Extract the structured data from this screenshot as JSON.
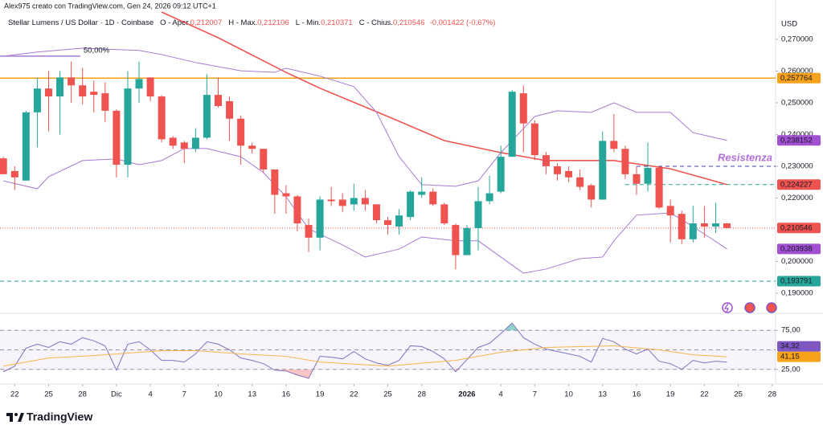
{
  "attribution": "Alex975 creato con TradingView.com, Gen 24, 2026 09:12 UTC+1",
  "branding": "TradingView",
  "chart_data": [
    {
      "type": "candlestick",
      "title": "Stellar Lumens / US Dollar · 1D · Coinbase",
      "ohlc_legend": [
        {
          "label": "O - Aper.",
          "value": "0,212007"
        },
        {
          "label": "H - Max.",
          "value": "0,212106"
        },
        {
          "label": "L - Min.",
          "value": "0,210371"
        },
        {
          "label": "C - Chius.",
          "value": "0,210546"
        }
      ],
      "change": "-0,001422 (-0,67%)",
      "legend_color": "#ef5350",
      "y_axis_label": "USD",
      "x": [
        -1,
        0,
        1,
        2,
        3,
        4,
        5,
        6,
        7,
        8,
        9,
        10,
        11,
        12,
        13,
        14,
        15,
        16,
        17,
        18,
        19,
        20,
        21,
        22,
        23,
        24,
        25,
        26,
        27,
        28,
        29,
        30,
        31,
        32,
        33,
        34,
        35,
        36,
        37,
        38,
        39,
        40,
        41,
        42,
        43,
        44,
        45,
        46,
        47,
        48,
        49,
        50,
        51,
        52,
        53,
        54,
        55,
        56,
        57,
        58,
        59,
        60,
        61,
        62,
        63
      ],
      "open": [
        0.2325,
        0.2285,
        0.2255,
        0.247,
        0.2545,
        0.252,
        0.258,
        0.2555,
        0.2535,
        0.253,
        0.2475,
        0.2305,
        0.2545,
        0.258,
        0.252,
        0.239,
        0.2375,
        0.2355,
        0.239,
        0.2525,
        0.2505,
        0.245,
        0.2365,
        0.2355,
        0.229,
        0.2215,
        0.2205,
        0.2115,
        0.2075,
        0.2195,
        0.2195,
        0.218,
        0.22,
        0.218,
        0.213,
        0.211,
        0.214,
        0.221,
        0.222,
        0.218,
        0.2115,
        0.202,
        0.2105,
        0.219,
        0.222,
        0.233,
        0.253,
        0.2435,
        0.2335,
        0.23,
        0.2285,
        0.2265,
        0.224,
        0.2195,
        0.238,
        0.2355,
        0.2275,
        0.2245,
        0.2295,
        0.2175,
        0.215,
        0.207,
        0.212,
        0.211,
        0.212007
      ],
      "high": [
        0.233,
        0.23,
        0.2475,
        0.258,
        0.26,
        0.26,
        0.263,
        0.261,
        0.257,
        0.2565,
        0.248,
        0.26,
        0.263,
        0.258,
        0.2525,
        0.2395,
        0.238,
        0.242,
        0.259,
        0.258,
        0.252,
        0.246,
        0.2375,
        0.2355,
        0.229,
        0.224,
        0.221,
        0.2135,
        0.2205,
        0.2235,
        0.2215,
        0.2245,
        0.2225,
        0.218,
        0.214,
        0.2165,
        0.2225,
        0.2265,
        0.223,
        0.2185,
        0.212,
        0.2115,
        0.2235,
        0.227,
        0.2365,
        0.254,
        0.2555,
        0.2445,
        0.2345,
        0.231,
        0.23,
        0.229,
        0.2245,
        0.241,
        0.2465,
        0.2365,
        0.23,
        0.2375,
        0.23,
        0.2195,
        0.216,
        0.2175,
        0.2175,
        0.2185,
        0.212106
      ],
      "low": [
        0.2275,
        0.2225,
        0.2255,
        0.236,
        0.241,
        0.24,
        0.25,
        0.2495,
        0.247,
        0.244,
        0.2265,
        0.2265,
        0.25,
        0.2505,
        0.2375,
        0.2355,
        0.231,
        0.2345,
        0.2385,
        0.2485,
        0.238,
        0.2305,
        0.234,
        0.228,
        0.215,
        0.215,
        0.2095,
        0.203,
        0.2035,
        0.2175,
        0.2155,
        0.216,
        0.216,
        0.212,
        0.2085,
        0.2085,
        0.213,
        0.22,
        0.2175,
        0.2115,
        0.1975,
        0.202,
        0.2035,
        0.218,
        0.2215,
        0.233,
        0.2345,
        0.232,
        0.2275,
        0.2255,
        0.225,
        0.2225,
        0.217,
        0.2195,
        0.2345,
        0.226,
        0.221,
        0.222,
        0.2165,
        0.206,
        0.2055,
        0.206,
        0.2075,
        0.209,
        0.210371
      ],
      "close": [
        0.2275,
        0.2265,
        0.247,
        0.2545,
        0.252,
        0.258,
        0.2555,
        0.252,
        0.2525,
        0.2475,
        0.2305,
        0.2545,
        0.2575,
        0.252,
        0.2385,
        0.2365,
        0.2355,
        0.239,
        0.2525,
        0.249,
        0.245,
        0.2365,
        0.2355,
        0.229,
        0.221,
        0.2205,
        0.212,
        0.2075,
        0.2195,
        0.219,
        0.2175,
        0.22,
        0.218,
        0.213,
        0.2115,
        0.2145,
        0.222,
        0.222,
        0.218,
        0.212,
        0.202,
        0.2105,
        0.219,
        0.2215,
        0.233,
        0.2535,
        0.2435,
        0.2335,
        0.23,
        0.2275,
        0.2265,
        0.2235,
        0.2195,
        0.238,
        0.2355,
        0.2275,
        0.2245,
        0.2295,
        0.217,
        0.2145,
        0.207,
        0.212,
        0.211,
        0.212,
        0.210546
      ],
      "up_color": "#26a69a",
      "down_color": "#ef5350",
      "overlays": [
        {
          "color": "#ef5350",
          "width": 1.6,
          "x": [
            13,
            18,
            24,
            27,
            33,
            38,
            43,
            47,
            53,
            58,
            63
          ],
          "values": [
            0.2786,
            0.2705,
            0.2596,
            0.2546,
            0.2457,
            0.2381,
            0.2343,
            0.2318,
            0.2318,
            0.2292,
            0.224227
          ]
        },
        {
          "color": "#a679d3",
          "width": 1,
          "x": [
            -1,
            2,
            6,
            11,
            13,
            16,
            20,
            23,
            24,
            27,
            30,
            32,
            34,
            36,
            39,
            41,
            43,
            46,
            48,
            51,
            53,
            55,
            58,
            60,
            63
          ],
          "values": [
            0.2647,
            0.266,
            0.2672,
            0.2665,
            0.2652,
            0.2627,
            0.2601,
            0.2596,
            0.2609,
            0.2584,
            0.2551,
            0.247,
            0.233,
            0.2242,
            0.2237,
            0.2254,
            0.2343,
            0.2457,
            0.2475,
            0.247,
            0.25,
            0.247,
            0.247,
            0.2406,
            0.238152
          ]
        },
        {
          "color": "#a679d3",
          "width": 1,
          "x": [
            -1,
            2,
            3,
            6,
            9,
            11,
            13,
            15,
            17,
            20,
            22,
            24,
            26,
            29,
            31,
            34,
            36,
            39,
            41,
            43,
            45,
            47,
            50,
            52,
            53,
            55,
            58,
            60,
            63
          ],
          "values": [
            0.2254,
            0.2229,
            0.2267,
            0.2318,
            0.2323,
            0.2305,
            0.2318,
            0.2356,
            0.2356,
            0.233,
            0.228,
            0.2204,
            0.2103,
            0.2052,
            0.2014,
            0.2039,
            0.2077,
            0.2065,
            0.2065,
            0.2014,
            0.1963,
            0.1976,
            0.2009,
            0.2014,
            0.2065,
            0.2146,
            0.2153,
            0.211,
            0.203938
          ]
        }
      ],
      "levels": [
        {
          "value": 0.257764,
          "color": "#f7a21b",
          "style": "solid"
        },
        {
          "value": 0.193791,
          "color": "#26a69a",
          "style": "dashed"
        },
        {
          "value": 0.224227,
          "color": "#26a69a",
          "style": "dashed",
          "from_x": 54
        },
        {
          "value": 0.23,
          "color": "#3f3fb0",
          "style": "dashed",
          "from_x": 55
        },
        {
          "value": 0.210546,
          "color": "#ef5350",
          "style": "dotted"
        },
        {
          "value": 0.2647,
          "color": "#a679d3",
          "style": "solid",
          "to_x": 5.8,
          "label": "50,00%"
        }
      ],
      "annotation": "Resistenza",
      "badges": [
        {
          "value": 0.257764,
          "label": "0,257764",
          "color": "#f7a21b"
        },
        {
          "value": 0.238152,
          "label": "0,238152",
          "color": "#a050d0"
        },
        {
          "value": 0.224227,
          "label": "0,224227",
          "color": "#ef5350"
        },
        {
          "value": 0.210546,
          "label": "0,210546",
          "color": "#ef5350"
        },
        {
          "value": 0.203938,
          "label": "0,203938",
          "color": "#a050d0"
        },
        {
          "value": 0.193791,
          "label": "0,193791",
          "color": "#26a69a"
        }
      ],
      "xlim": [
        -1.3,
        67.3
      ],
      "ylim": [
        0.1867,
        0.2824
      ],
      "yticks": [
        {
          "value": 0.27,
          "label": "0,270000"
        },
        {
          "value": 0.26,
          "label": "0,260000"
        },
        {
          "value": 0.25,
          "label": "0,250000"
        },
        {
          "value": 0.24,
          "label": "0,240000"
        },
        {
          "value": 0.23,
          "label": "0,230000"
        },
        {
          "value": 0.22,
          "label": "0,220000"
        },
        {
          "value": 0.2,
          "label": "0,200000"
        },
        {
          "value": 0.19,
          "label": "0,190000"
        }
      ],
      "grid": false
    },
    {
      "type": "line",
      "x": [
        -1,
        0,
        1,
        2,
        3,
        4,
        5,
        6,
        7,
        8,
        9,
        10,
        11,
        12,
        13,
        14,
        15,
        16,
        17,
        18,
        19,
        20,
        21,
        22,
        23,
        24,
        25,
        26,
        27,
        28,
        29,
        30,
        31,
        32,
        33,
        34,
        35,
        36,
        37,
        38,
        39,
        40,
        41,
        42,
        43,
        44,
        45,
        46,
        47,
        48,
        49,
        50,
        51,
        52,
        53,
        54,
        55,
        56,
        57,
        58,
        59,
        60,
        61,
        62,
        63
      ],
      "series": [
        {
          "color": "#7e74c0",
          "width": 1,
          "x": [
            -1,
            0,
            1,
            2,
            3,
            4,
            5,
            6,
            7,
            8,
            9,
            10,
            11,
            12,
            13,
            14,
            15,
            16,
            17,
            18,
            19,
            20,
            21,
            22,
            23,
            24,
            25,
            26,
            27,
            28,
            29,
            30,
            31,
            32,
            33,
            34,
            35,
            36,
            37,
            38,
            39,
            40,
            41,
            42,
            43,
            44,
            45,
            46,
            47,
            48,
            49,
            50,
            51,
            52,
            53,
            54,
            55,
            56,
            57,
            58,
            59,
            60,
            61,
            62,
            63
          ],
          "values": [
            21.9,
            29.2,
            52.1,
            57.3,
            53.1,
            60.4,
            57.3,
            65.6,
            61.5,
            55.2,
            24,
            57.3,
            60.4,
            50,
            36.5,
            36.5,
            34.4,
            44.8,
            60.4,
            57.3,
            50,
            39.6,
            36.5,
            32.3,
            24,
            22.9,
            17.7,
            13.5,
            41.7,
            40.6,
            38.5,
            47.9,
            38.5,
            33.3,
            30.2,
            36.5,
            55.2,
            54.2,
            47.9,
            38.5,
            21.9,
            37.5,
            53.1,
            58.3,
            70.8,
            84.4,
            65.6,
            57.3,
            51,
            47.9,
            44.8,
            41.7,
            34.4,
            64.6,
            60.4,
            51,
            44.8,
            51,
            35.4,
            32.3,
            25,
            36.5,
            33.3,
            35.4,
            34.32
          ]
        },
        {
          "color": "#f7b54a",
          "width": 1,
          "x": [
            -1,
            3,
            7,
            13,
            16,
            20,
            24,
            27,
            33,
            39,
            43,
            47,
            53,
            57,
            60,
            63
          ],
          "values": [
            29.2,
            39.6,
            42.7,
            49,
            49,
            44.8,
            41.7,
            34.4,
            29.2,
            36.5,
            46.9,
            53.1,
            55.2,
            50,
            43.75,
            41.15
          ]
        }
      ],
      "levels": [
        {
          "value": 50,
          "color": "#9598a1",
          "style": "dashed"
        }
      ],
      "band_color": "#7e57c2",
      "oversold_color": "#f28b8b",
      "overbought_color": "#26a69a",
      "badges": [
        {
          "value": 41.15,
          "label": "41,15",
          "color": "#f7a21b"
        },
        {
          "value": 34.32,
          "label": "34,32",
          "color": "#7e57c2"
        }
      ],
      "xlim": [
        -1.3,
        67.3
      ],
      "ylim": [
        8.3,
        91.7
      ],
      "yticks": [
        {
          "value": 75,
          "label": "75,00"
        },
        {
          "value": 25,
          "label": "25,00"
        }
      ],
      "grid": "dashed",
      "xticks": [
        {
          "value": 0,
          "label": "22"
        },
        {
          "value": 3,
          "label": "25"
        },
        {
          "value": 6,
          "label": "28"
        },
        {
          "value": 9,
          "label": "Dic"
        },
        {
          "value": 12,
          "label": "4"
        },
        {
          "value": 15,
          "label": "7"
        },
        {
          "value": 18,
          "label": "10"
        },
        {
          "value": 21,
          "label": "13"
        },
        {
          "value": 24,
          "label": "16"
        },
        {
          "value": 27,
          "label": "19"
        },
        {
          "value": 30,
          "label": "22"
        },
        {
          "value": 33,
          "label": "25"
        },
        {
          "value": 36,
          "label": "28"
        },
        {
          "value": 40,
          "label": "2026",
          "bold": true
        },
        {
          "value": 43,
          "label": "4"
        },
        {
          "value": 46,
          "label": "7"
        },
        {
          "value": 49,
          "label": "10"
        },
        {
          "value": 52,
          "label": "13"
        },
        {
          "value": 55,
          "label": "16"
        },
        {
          "value": 58,
          "label": "19"
        },
        {
          "value": 61,
          "label": "22"
        },
        {
          "value": 64,
          "label": "25"
        },
        {
          "value": 67,
          "label": "28"
        }
      ]
    }
  ]
}
